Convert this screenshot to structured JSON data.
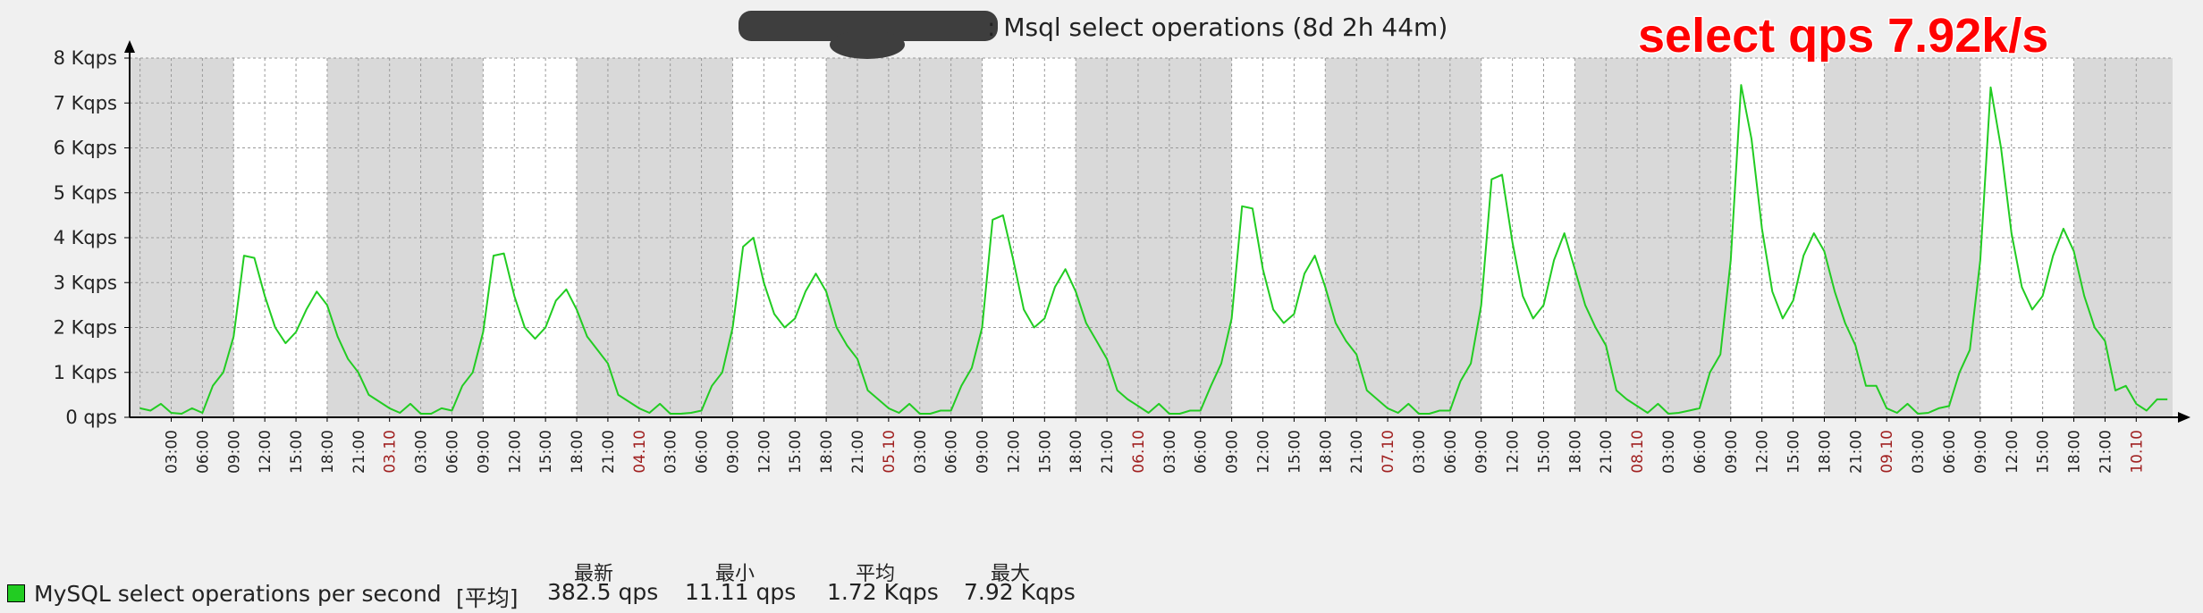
{
  "title_suffix": ": Msql select operations (8d 2h 44m)",
  "annotation": "select qps 7.92k/s",
  "colors": {
    "line": "#22cc22",
    "night": "#d9d9d9",
    "day": "#ffffff",
    "date_label": "#a02020",
    "annotation": "#ff0000"
  },
  "legend": {
    "series_name": "MySQL select operations per second",
    "function": "[平均]",
    "headers": {
      "last": "最新",
      "min": "最小",
      "avg": "平均",
      "max": "最大"
    },
    "values": {
      "last": "382.5 qps",
      "min": "11.11 qps",
      "avg": "1.72 Kqps",
      "max": "7.92 Kqps"
    }
  },
  "chart_data": {
    "type": "line",
    "title": ": Msql select operations (8d 2h 44m)",
    "ylim": [
      0,
      8000
    ],
    "y_tick_labels": [
      "0 qps",
      "1 Kqps",
      "2 Kqps",
      "3 Kqps",
      "4 Kqps",
      "5 Kqps",
      "6 Kqps",
      "7 Kqps",
      "8 Kqps"
    ],
    "x_unit": "hours",
    "x_tick_labels": [
      "03:00",
      "06:00",
      "09:00",
      "12:00",
      "15:00",
      "18:00",
      "21:00",
      "03.10",
      "03:00",
      "06:00",
      "09:00",
      "12:00",
      "15:00",
      "18:00",
      "21:00",
      "04.10",
      "03:00",
      "06:00",
      "09:00",
      "12:00",
      "15:00",
      "18:00",
      "21:00",
      "05.10",
      "03:00",
      "06:00",
      "09:00",
      "12:00",
      "15:00",
      "18:00",
      "21:00",
      "06.10",
      "03:00",
      "06:00",
      "09:00",
      "12:00",
      "15:00",
      "18:00",
      "21:00",
      "07.10",
      "03:00",
      "06:00",
      "09:00",
      "12:00",
      "15:00",
      "18:00",
      "21:00",
      "08.10",
      "03:00",
      "06:00",
      "09:00",
      "12:00",
      "15:00",
      "18:00",
      "21:00",
      "09.10",
      "03:00",
      "06:00",
      "09:00",
      "12:00",
      "15:00",
      "18:00",
      "21:00",
      "10.10"
    ],
    "series": [
      {
        "name": "MySQL select operations per second",
        "points": [
          [
            0,
            200
          ],
          [
            1,
            150
          ],
          [
            2,
            300
          ],
          [
            3,
            100
          ],
          [
            4,
            80
          ],
          [
            5,
            200
          ],
          [
            6,
            100
          ],
          [
            7,
            700
          ],
          [
            8,
            1000
          ],
          [
            9,
            1800
          ],
          [
            10,
            3600
          ],
          [
            11,
            3550
          ],
          [
            12,
            2700
          ],
          [
            13,
            2000
          ],
          [
            14,
            1650
          ],
          [
            15,
            1900
          ],
          [
            16,
            2400
          ],
          [
            17,
            2800
          ],
          [
            18,
            2500
          ],
          [
            19,
            1800
          ],
          [
            20,
            1300
          ],
          [
            21,
            1000
          ],
          [
            22,
            500
          ],
          [
            23,
            350
          ],
          [
            24,
            200
          ],
          [
            25,
            100
          ],
          [
            26,
            300
          ],
          [
            27,
            80
          ],
          [
            28,
            80
          ],
          [
            29,
            200
          ],
          [
            30,
            150
          ],
          [
            31,
            700
          ],
          [
            32,
            1000
          ],
          [
            33,
            1900
          ],
          [
            34,
            3600
          ],
          [
            35,
            3650
          ],
          [
            36,
            2700
          ],
          [
            37,
            2000
          ],
          [
            38,
            1750
          ],
          [
            39,
            2000
          ],
          [
            40,
            2600
          ],
          [
            41,
            2850
          ],
          [
            42,
            2400
          ],
          [
            43,
            1800
          ],
          [
            44,
            1500
          ],
          [
            45,
            1200
          ],
          [
            46,
            500
          ],
          [
            47,
            350
          ],
          [
            48,
            200
          ],
          [
            49,
            100
          ],
          [
            50,
            300
          ],
          [
            51,
            80
          ],
          [
            52,
            80
          ],
          [
            53,
            100
          ],
          [
            54,
            150
          ],
          [
            55,
            700
          ],
          [
            56,
            1000
          ],
          [
            57,
            2000
          ],
          [
            58,
            3800
          ],
          [
            59,
            4000
          ],
          [
            60,
            3000
          ],
          [
            61,
            2300
          ],
          [
            62,
            2000
          ],
          [
            63,
            2200
          ],
          [
            64,
            2800
          ],
          [
            65,
            3200
          ],
          [
            66,
            2800
          ],
          [
            67,
            2000
          ],
          [
            68,
            1600
          ],
          [
            69,
            1300
          ],
          [
            70,
            600
          ],
          [
            71,
            400
          ],
          [
            72,
            200
          ],
          [
            73,
            100
          ],
          [
            74,
            300
          ],
          [
            75,
            80
          ],
          [
            76,
            80
          ],
          [
            77,
            150
          ],
          [
            78,
            150
          ],
          [
            79,
            700
          ],
          [
            80,
            1100
          ],
          [
            81,
            2000
          ],
          [
            82,
            4400
          ],
          [
            83,
            4500
          ],
          [
            84,
            3500
          ],
          [
            85,
            2400
          ],
          [
            86,
            2000
          ],
          [
            87,
            2200
          ],
          [
            88,
            2900
          ],
          [
            89,
            3300
          ],
          [
            90,
            2800
          ],
          [
            91,
            2100
          ],
          [
            92,
            1700
          ],
          [
            93,
            1300
          ],
          [
            94,
            600
          ],
          [
            95,
            400
          ],
          [
            96,
            250
          ],
          [
            97,
            100
          ],
          [
            98,
            300
          ],
          [
            99,
            80
          ],
          [
            100,
            80
          ],
          [
            101,
            150
          ],
          [
            102,
            150
          ],
          [
            103,
            700
          ],
          [
            104,
            1200
          ],
          [
            105,
            2200
          ],
          [
            106,
            4700
          ],
          [
            107,
            4650
          ],
          [
            108,
            3300
          ],
          [
            109,
            2400
          ],
          [
            110,
            2100
          ],
          [
            111,
            2300
          ],
          [
            112,
            3200
          ],
          [
            113,
            3600
          ],
          [
            114,
            2900
          ],
          [
            115,
            2100
          ],
          [
            116,
            1700
          ],
          [
            117,
            1400
          ],
          [
            118,
            600
          ],
          [
            119,
            400
          ],
          [
            120,
            200
          ],
          [
            121,
            100
          ],
          [
            122,
            300
          ],
          [
            123,
            80
          ],
          [
            124,
            80
          ],
          [
            125,
            150
          ],
          [
            126,
            150
          ],
          [
            127,
            800
          ],
          [
            128,
            1200
          ],
          [
            129,
            2500
          ],
          [
            130,
            5300
          ],
          [
            131,
            5400
          ],
          [
            132,
            3900
          ],
          [
            133,
            2700
          ],
          [
            134,
            2200
          ],
          [
            135,
            2500
          ],
          [
            136,
            3500
          ],
          [
            137,
            4100
          ],
          [
            138,
            3300
          ],
          [
            139,
            2500
          ],
          [
            140,
            2000
          ],
          [
            141,
            1600
          ],
          [
            142,
            600
          ],
          [
            143,
            400
          ],
          [
            144,
            250
          ],
          [
            145,
            100
          ],
          [
            146,
            300
          ],
          [
            147,
            80
          ],
          [
            148,
            100
          ],
          [
            149,
            150
          ],
          [
            150,
            200
          ],
          [
            151,
            1000
          ],
          [
            152,
            1400
          ],
          [
            153,
            3500
          ],
          [
            154,
            7400
          ],
          [
            155,
            6200
          ],
          [
            156,
            4200
          ],
          [
            157,
            2800
          ],
          [
            158,
            2200
          ],
          [
            159,
            2600
          ],
          [
            160,
            3600
          ],
          [
            161,
            4100
          ],
          [
            162,
            3700
          ],
          [
            163,
            2800
          ],
          [
            164,
            2100
          ],
          [
            165,
            1600
          ],
          [
            166,
            700
          ],
          [
            167,
            700
          ],
          [
            168,
            200
          ],
          [
            169,
            100
          ],
          [
            170,
            300
          ],
          [
            171,
            80
          ],
          [
            172,
            100
          ],
          [
            173,
            200
          ],
          [
            174,
            250
          ],
          [
            175,
            1000
          ],
          [
            176,
            1500
          ],
          [
            177,
            3500
          ],
          [
            178,
            7350
          ],
          [
            179,
            6000
          ],
          [
            180,
            4100
          ],
          [
            181,
            2900
          ],
          [
            182,
            2400
          ],
          [
            183,
            2700
          ],
          [
            184,
            3600
          ],
          [
            185,
            4200
          ],
          [
            186,
            3700
          ],
          [
            187,
            2700
          ],
          [
            188,
            2000
          ],
          [
            189,
            1700
          ],
          [
            190,
            600
          ],
          [
            191,
            700
          ],
          [
            192,
            300
          ],
          [
            193,
            150
          ],
          [
            194,
            400
          ],
          [
            195,
            400
          ]
        ]
      }
    ]
  }
}
